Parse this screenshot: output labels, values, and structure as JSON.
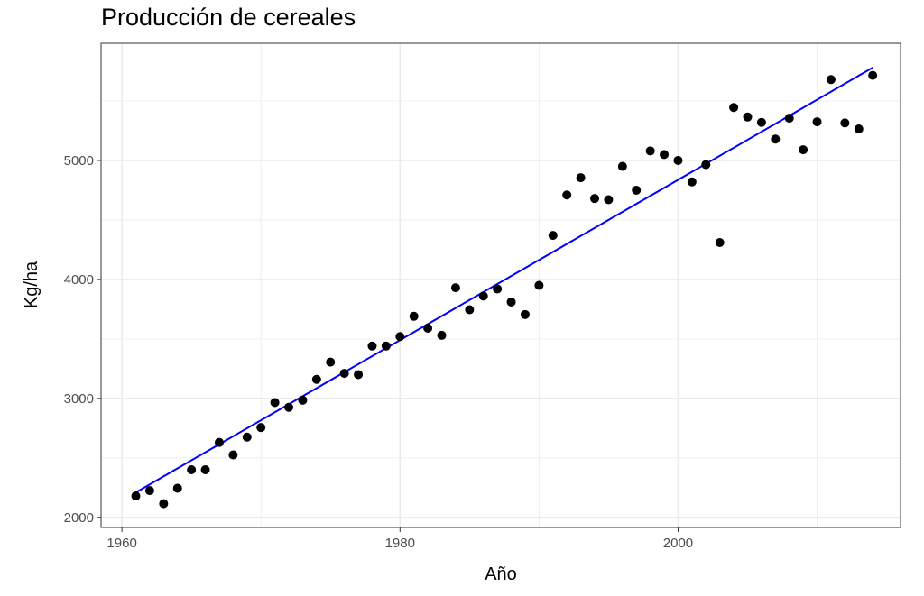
{
  "chart_data": {
    "type": "scatter",
    "title": "Producción de cereales",
    "xlabel": "Año",
    "ylabel": "Kg/ha",
    "xlim": [
      1958.5,
      2016
    ],
    "ylim": [
      1915,
      5985
    ],
    "xticks": [
      1960,
      1980,
      2000
    ],
    "yticks": [
      2000,
      3000,
      4000,
      5000
    ],
    "grid": true,
    "legend": "none",
    "colors": {
      "points": "#000000",
      "trend": "#0000ff",
      "grid": "#ebebeb",
      "panel_border": "#333333"
    },
    "series": [
      {
        "values_x": [
          1961,
          1962,
          1963,
          1964,
          1965,
          1966,
          1967,
          1968,
          1969,
          1970,
          1971,
          1972,
          1973,
          1974,
          1975,
          1976,
          1977,
          1978,
          1979,
          1980,
          1981,
          1982,
          1983,
          1984,
          1985,
          1986,
          1987,
          1988,
          1989,
          1990,
          1991,
          1992,
          1993,
          1994,
          1995,
          1996,
          1997,
          1998,
          1999,
          2000,
          2001,
          2002,
          2003,
          2004,
          2005,
          2006,
          2007,
          2008,
          2009,
          2010,
          2011,
          2012,
          2013,
          2014
        ],
        "values_y": [
          2180,
          2225,
          2115,
          2245,
          2400,
          2400,
          2630,
          2525,
          2675,
          2755,
          2965,
          2925,
          2985,
          3160,
          3305,
          3210,
          3200,
          3440,
          3440,
          3520,
          3690,
          3590,
          3530,
          3930,
          3745,
          3860,
          3920,
          3810,
          3705,
          3950,
          4370,
          4710,
          4855,
          4680,
          4670,
          4950,
          4750,
          5080,
          5050,
          5000,
          4820,
          4965,
          4310,
          5445,
          5365,
          5320,
          5180,
          5355,
          5090,
          5325,
          5680,
          5315,
          5265,
          5715
        ]
      }
    ],
    "trend_line": {
      "x": [
        1961,
        2014
      ],
      "y": [
        2210,
        5780
      ]
    }
  }
}
